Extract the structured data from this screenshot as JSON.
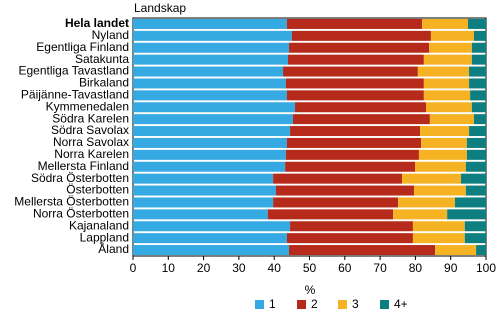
{
  "chart_data": {
    "type": "stacked-barh",
    "y_label": "Landskap",
    "x_label": "%",
    "categories": [
      "Hela landet",
      "Nyland",
      "Egentliga Finland",
      "Satakunta",
      "Egentliga Tavastland",
      "Birkaland",
      "Päijänne-Tavastland",
      "Kymmenedalen",
      "Södra Karelen",
      "Södra Savolax",
      "Norra Savolax",
      "Norra Karelen",
      "Mellersta Finland",
      "Södra Österbotten",
      "Österbotten",
      "Mellersta Österbotten",
      "Norra Österbotten",
      "Kajanaland",
      "Lappland",
      "Åland"
    ],
    "series": [
      {
        "name": "1",
        "color": "#35a9e1",
        "values": [
          43.6,
          45,
          44.2,
          43.9,
          42.5,
          43.3,
          43.6,
          45.9,
          45.3,
          44.5,
          43.6,
          43.3,
          43.1,
          39.7,
          40.5,
          39.7,
          38.2,
          44.5,
          43.6,
          44.2
        ]
      },
      {
        "name": "2",
        "color": "#b52a1a",
        "values": [
          38.3,
          39.4,
          39.7,
          38.5,
          38.2,
          39.1,
          38.8,
          37.1,
          38.8,
          36.8,
          38,
          37.7,
          36.8,
          36.5,
          39.1,
          35.4,
          35.5,
          34.8,
          35.7,
          41.4
        ]
      },
      {
        "name": "3",
        "color": "#f5b324",
        "values": [
          13,
          12.2,
          12.1,
          13.6,
          14.5,
          12.8,
          13.1,
          13,
          12.5,
          13.9,
          13,
          13.6,
          14.4,
          16.7,
          14.7,
          16.1,
          15.3,
          14.7,
          14.7,
          11.6
        ]
      },
      {
        "name": "4+",
        "color": "#0d7f80",
        "values": [
          5.1,
          3.4,
          4,
          4,
          4.8,
          4.8,
          4.5,
          4,
          3.4,
          4.8,
          5.4,
          5.4,
          5.7,
          7.1,
          5.7,
          8.8,
          11,
          6,
          6,
          2.8
        ]
      }
    ],
    "xlim": [
      0,
      100
    ],
    "xticks": [
      0,
      10,
      20,
      30,
      40,
      50,
      60,
      70,
      80,
      90,
      100
    ],
    "grid": false
  }
}
